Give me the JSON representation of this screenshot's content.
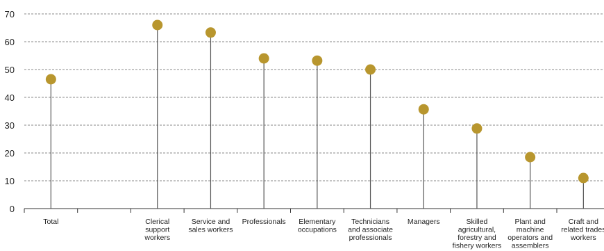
{
  "chart_data": {
    "type": "lollipop",
    "title": "",
    "xlabel": "",
    "ylabel": "",
    "ylim": [
      0,
      75
    ],
    "yticks": [
      0,
      10,
      20,
      30,
      40,
      50,
      60,
      70
    ],
    "grid": "horizontal-dashed",
    "legend": "none",
    "colors": {
      "marker": "#b8962e",
      "stem": "#555555",
      "axis": "#333333",
      "grid": "#888888",
      "text": "#222222"
    },
    "categories": [
      [
        "Total"
      ],
      [
        ""
      ],
      [
        "Clerical",
        "support",
        "workers"
      ],
      [
        "Service and",
        "sales workers"
      ],
      [
        "Professionals"
      ],
      [
        "Elementary",
        "occupations"
      ],
      [
        "Technicians",
        "and associate",
        "professionals"
      ],
      [
        "Managers"
      ],
      [
        "Skilled",
        "agricultural,",
        "forestry and",
        "fishery workers"
      ],
      [
        "Plant and",
        "machine",
        "operators and",
        "assemblers"
      ],
      [
        "Craft and",
        "related trades",
        "workers"
      ]
    ],
    "values": [
      46.5,
      null,
      66,
      63.3,
      54,
      53.2,
      50,
      35.7,
      28.8,
      18.5,
      11
    ]
  }
}
